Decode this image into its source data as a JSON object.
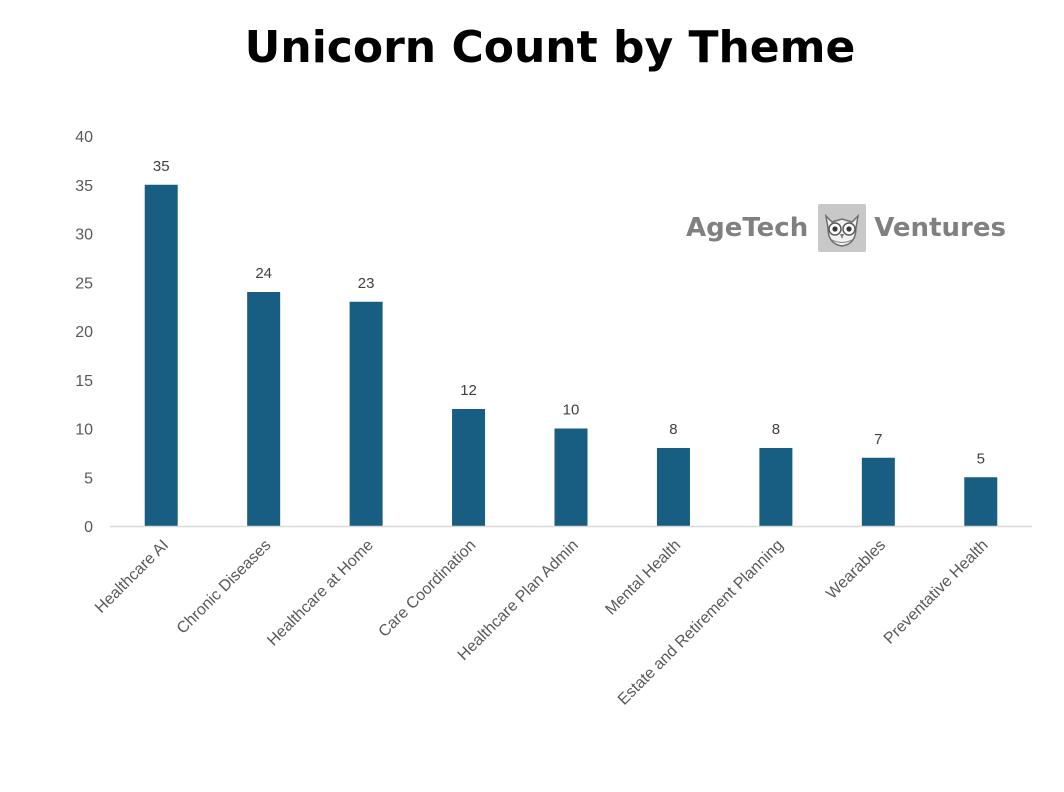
{
  "chart_data": {
    "type": "bar",
    "title": "Unicorn Count by Theme",
    "categories": [
      "Healthcare AI",
      "Chronic Diseases",
      "Healthcare at Home",
      "Care Coordination",
      "Healthcare Plan Admin",
      "Mental Health",
      "Estate and Retirement Planning",
      "Wearables",
      "Preventative Health"
    ],
    "values": [
      35,
      24,
      23,
      12,
      10,
      8,
      8,
      7,
      5
    ],
    "xlabel": "",
    "ylabel": "",
    "ylim": [
      0,
      40
    ],
    "yticks": [
      0,
      5,
      10,
      15,
      20,
      25,
      30,
      35,
      40
    ],
    "grid": false,
    "data_labels": true,
    "legend": "none",
    "bar_color": "#185E82",
    "axis_color": "#D9D9D9"
  },
  "logo": {
    "left_text": "AgeTech",
    "right_text": "Ventures",
    "mark_icon": "owl-icon",
    "color": "#808080"
  }
}
